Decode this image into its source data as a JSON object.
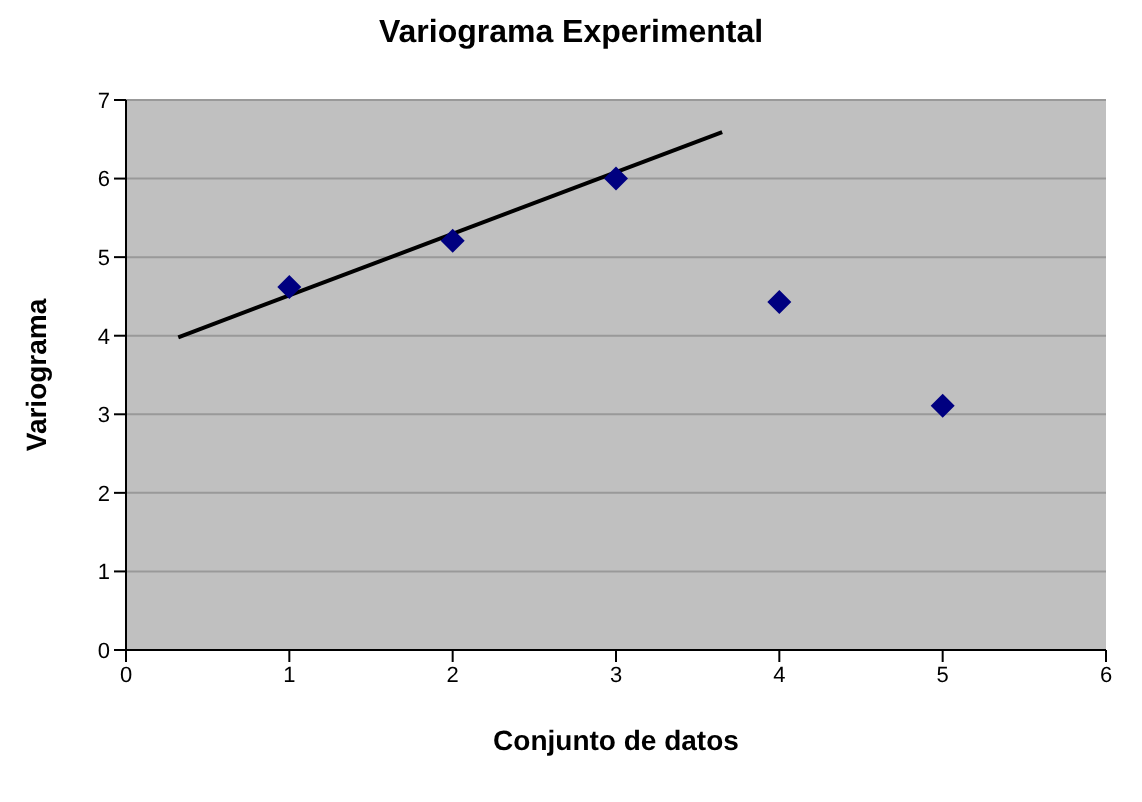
{
  "chart_data": {
    "type": "scatter",
    "title": "Variograma Experimental",
    "xlabel": "Conjunto de datos",
    "ylabel": "Variograma",
    "x": [
      1,
      2,
      3,
      4,
      5
    ],
    "series": [
      {
        "color": "#000080",
        "values": [
          4.62,
          5.21,
          6.0,
          4.43,
          3.11
        ],
        "marker": "diamond"
      },
      {
        "type": "line",
        "color": "#000000",
        "x": [
          0.32,
          3.65
        ],
        "values": [
          3.98,
          6.59
        ],
        "marker": "none"
      }
    ],
    "xlim": [
      0,
      6
    ],
    "xticks": [
      0,
      1,
      2,
      3,
      4,
      5,
      6
    ],
    "ylim": [
      0,
      7
    ],
    "yticks": [
      0,
      1,
      2,
      3,
      4,
      5,
      6,
      7
    ],
    "grid": "y"
  }
}
